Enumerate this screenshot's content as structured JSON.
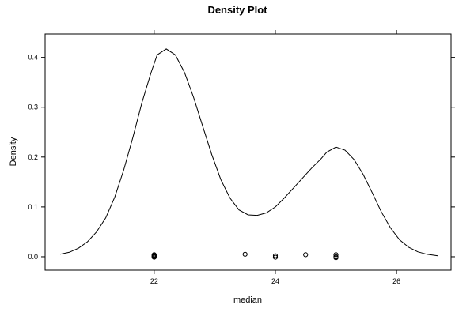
{
  "chart_data": {
    "type": "line",
    "title": "Density Plot",
    "xlabel": "median",
    "ylabel": "Density",
    "xlim": [
      20.2,
      26.9
    ],
    "ylim": [
      -0.027,
      0.447
    ],
    "x_ticks": [
      22,
      24,
      26
    ],
    "x_tick_labels": [
      "22",
      "24",
      "26"
    ],
    "y_ticks": [
      0.0,
      0.1,
      0.2,
      0.3,
      0.4
    ],
    "y_tick_labels": [
      "0.0",
      "0.1",
      "0.2",
      "0.3",
      "0.4"
    ],
    "grid": false,
    "legend": "none",
    "series": [
      {
        "x": [
          20.45,
          20.6,
          20.75,
          20.9,
          21.05,
          21.2,
          21.35,
          21.5,
          21.65,
          21.8,
          21.95,
          22.05,
          22.2,
          22.35,
          22.5,
          22.65,
          22.8,
          22.95,
          23.1,
          23.25,
          23.4,
          23.55,
          23.7,
          23.85,
          24.0,
          24.15,
          24.3,
          24.45,
          24.6,
          24.75,
          24.85,
          25.0,
          25.15,
          25.3,
          25.45,
          25.6,
          25.75,
          25.9,
          26.05,
          26.2,
          26.35,
          26.5,
          26.68
        ],
        "y": [
          0.005,
          0.009,
          0.017,
          0.03,
          0.05,
          0.078,
          0.12,
          0.175,
          0.24,
          0.31,
          0.37,
          0.405,
          0.417,
          0.405,
          0.37,
          0.32,
          0.262,
          0.205,
          0.155,
          0.118,
          0.094,
          0.084,
          0.083,
          0.088,
          0.1,
          0.118,
          0.138,
          0.158,
          0.178,
          0.196,
          0.21,
          0.22,
          0.214,
          0.195,
          0.165,
          0.128,
          0.09,
          0.058,
          0.034,
          0.019,
          0.01,
          0.005,
          0.002
        ]
      }
    ],
    "rug_points": [
      {
        "x": 22.0,
        "y": 0.0
      },
      {
        "x": 22.0,
        "y": 0.002
      },
      {
        "x": 22.0,
        "y": 0.004
      },
      {
        "x": 22.0,
        "y": -0.001
      },
      {
        "x": 22.0,
        "y": 0.001
      },
      {
        "x": 22.0,
        "y": 0.003
      },
      {
        "x": 23.5,
        "y": 0.005
      },
      {
        "x": 24.0,
        "y": 0.002
      },
      {
        "x": 24.0,
        "y": -0.001
      },
      {
        "x": 24.5,
        "y": 0.004
      },
      {
        "x": 25.0,
        "y": 0.004
      },
      {
        "x": 25.0,
        "y": 0.0
      },
      {
        "x": 25.0,
        "y": -0.002
      }
    ]
  }
}
